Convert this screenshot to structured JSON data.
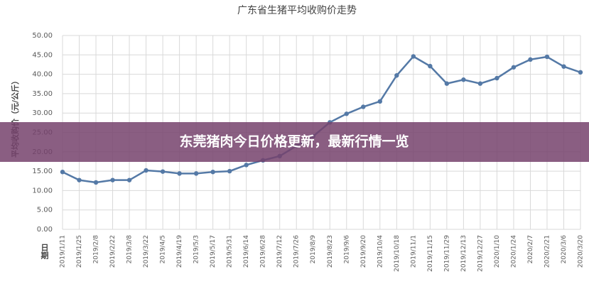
{
  "chart_data": {
    "type": "line",
    "title": "广东省生猪平均收购价走势",
    "y_label": "平均收购价（元/公斤）",
    "x_label": "日期",
    "categories": [
      "2019/1/11",
      "2019/1/25",
      "2019/2/8",
      "2019/2/22",
      "2019/3/8",
      "2019/3/22",
      "2019/4/5",
      "2019/4/19",
      "2019/5/3",
      "2019/5/17",
      "2019/5/31",
      "2019/6/14",
      "2019/6/28",
      "2019/7/12",
      "2019/7/26",
      "2019/8/9",
      "2019/8/23",
      "2019/9/6",
      "2019/9/20",
      "2019/10/4",
      "2019/10/18",
      "2019/11/1",
      "2019/11/15",
      "2019/11/29",
      "2019/12/13",
      "2019/12/27",
      "2020/1/10",
      "2020/1/24",
      "2020/2/7",
      "2020/2/21",
      "2020/3/6",
      "2020/3/20"
    ],
    "series": [
      {
        "name": "平均收购价",
        "color": "#5479a6",
        "values": [
          14.8,
          12.7,
          12.1,
          12.7,
          12.7,
          15.2,
          14.9,
          14.4,
          14.4,
          14.8,
          15.0,
          16.6,
          17.8,
          18.9,
          21.5,
          24.0,
          27.6,
          29.8,
          31.6,
          33.0,
          39.7,
          44.6,
          42.1,
          37.6,
          38.6,
          37.6,
          39.0,
          41.8,
          43.8,
          44.5,
          42.0,
          40.5
        ]
      }
    ],
    "ylim": [
      0,
      50
    ],
    "yticks": [
      {
        "value": 0,
        "label": "0.00"
      },
      {
        "value": 5,
        "label": "5.00"
      },
      {
        "value": 10,
        "label": "10.00"
      },
      {
        "value": 15,
        "label": "15.00"
      },
      {
        "value": 20,
        "label": "20.00"
      },
      {
        "value": 25,
        "label": "25.00"
      },
      {
        "value": 30,
        "label": "30.00"
      },
      {
        "value": 35,
        "label": "35.00"
      },
      {
        "value": 40,
        "label": "40.00"
      },
      {
        "value": 45,
        "label": "45.00"
      },
      {
        "value": 50,
        "label": "50.00"
      }
    ],
    "grid": true
  },
  "banner": {
    "text": "东莞猪肉今日价格更新，最新行情一览"
  }
}
